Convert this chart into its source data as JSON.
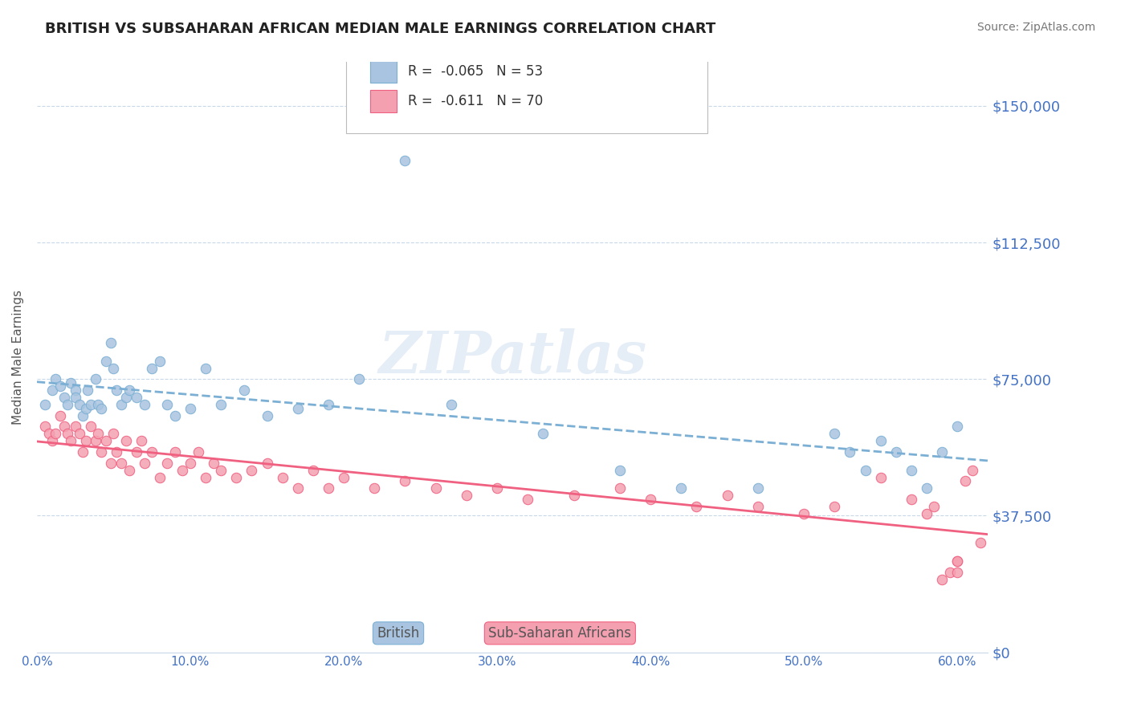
{
  "title": "BRITISH VS SUBSAHARAN AFRICAN MEDIAN MALE EARNINGS CORRELATION CHART",
  "source": "Source: ZipAtlas.com",
  "xlabel": "",
  "ylabel": "Median Male Earnings",
  "ytick_labels": [
    "$0",
    "$37,500",
    "$75,000",
    "$112,500",
    "$150,000"
  ],
  "ytick_values": [
    0,
    37500,
    75000,
    112500,
    150000
  ],
  "xtick_labels": [
    "0.0%",
    "10.0%",
    "20.0%",
    "30.0%",
    "40.0%",
    "50.0%",
    "60.0%"
  ],
  "xtick_values": [
    0.0,
    0.1,
    0.2,
    0.3,
    0.4,
    0.5,
    0.6
  ],
  "xlim": [
    0.0,
    0.62
  ],
  "ylim": [
    0,
    162000
  ],
  "legend_r1": "R =  -0.065   N = 53",
  "legend_r2": "R =  -0.611   N = 70",
  "legend_label1": "British",
  "legend_label2": "Sub-Saharan Africans",
  "color_british": "#a8c4e0",
  "color_british_line": "#7bafd4",
  "color_african": "#f4a0b0",
  "color_african_line": "#f06080",
  "color_axis_labels": "#4472c4",
  "color_title": "#333333",
  "color_grid": "#c8d8e8",
  "watermark_text": "ZIPatlas",
  "british_x": [
    0.005,
    0.01,
    0.012,
    0.015,
    0.018,
    0.02,
    0.022,
    0.025,
    0.025,
    0.028,
    0.03,
    0.032,
    0.033,
    0.035,
    0.038,
    0.04,
    0.042,
    0.045,
    0.048,
    0.05,
    0.052,
    0.055,
    0.058,
    0.06,
    0.065,
    0.07,
    0.075,
    0.08,
    0.085,
    0.09,
    0.1,
    0.11,
    0.12,
    0.135,
    0.15,
    0.17,
    0.19,
    0.21,
    0.24,
    0.27,
    0.33,
    0.38,
    0.42,
    0.47,
    0.52,
    0.53,
    0.54,
    0.55,
    0.56,
    0.57,
    0.58,
    0.59,
    0.6
  ],
  "british_y": [
    68000,
    72000,
    75000,
    73000,
    70000,
    68000,
    74000,
    72000,
    70000,
    68000,
    65000,
    67000,
    72000,
    68000,
    75000,
    68000,
    67000,
    80000,
    85000,
    78000,
    72000,
    68000,
    70000,
    72000,
    70000,
    68000,
    78000,
    80000,
    68000,
    65000,
    67000,
    78000,
    68000,
    72000,
    65000,
    67000,
    68000,
    75000,
    135000,
    68000,
    60000,
    50000,
    45000,
    45000,
    60000,
    55000,
    50000,
    58000,
    55000,
    50000,
    45000,
    55000,
    62000
  ],
  "african_x": [
    0.005,
    0.008,
    0.01,
    0.012,
    0.015,
    0.018,
    0.02,
    0.022,
    0.025,
    0.028,
    0.03,
    0.032,
    0.035,
    0.038,
    0.04,
    0.042,
    0.045,
    0.048,
    0.05,
    0.052,
    0.055,
    0.058,
    0.06,
    0.065,
    0.068,
    0.07,
    0.075,
    0.08,
    0.085,
    0.09,
    0.095,
    0.1,
    0.105,
    0.11,
    0.115,
    0.12,
    0.13,
    0.14,
    0.15,
    0.16,
    0.17,
    0.18,
    0.19,
    0.2,
    0.22,
    0.24,
    0.26,
    0.28,
    0.3,
    0.32,
    0.35,
    0.38,
    0.4,
    0.43,
    0.45,
    0.47,
    0.5,
    0.52,
    0.55,
    0.57,
    0.58,
    0.585,
    0.59,
    0.595,
    0.6,
    0.6,
    0.6,
    0.605,
    0.61,
    0.615
  ],
  "african_y": [
    62000,
    60000,
    58000,
    60000,
    65000,
    62000,
    60000,
    58000,
    62000,
    60000,
    55000,
    58000,
    62000,
    58000,
    60000,
    55000,
    58000,
    52000,
    60000,
    55000,
    52000,
    58000,
    50000,
    55000,
    58000,
    52000,
    55000,
    48000,
    52000,
    55000,
    50000,
    52000,
    55000,
    48000,
    52000,
    50000,
    48000,
    50000,
    52000,
    48000,
    45000,
    50000,
    45000,
    48000,
    45000,
    47000,
    45000,
    43000,
    45000,
    42000,
    43000,
    45000,
    42000,
    40000,
    43000,
    40000,
    38000,
    40000,
    48000,
    42000,
    38000,
    40000,
    20000,
    22000,
    25000,
    25000,
    22000,
    47000,
    50000,
    30000
  ]
}
